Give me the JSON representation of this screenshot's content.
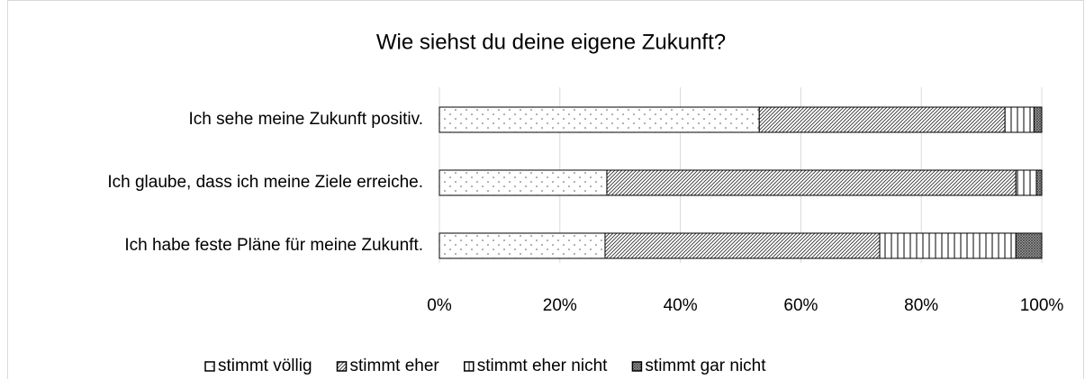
{
  "chart_data": {
    "type": "stacked_bar_horizontal",
    "title": "Wie siehst du deine eigene Zukunft?",
    "categories": [
      "Ich sehe meine Zukunft positiv.",
      "Ich glaube, dass ich meine Ziele erreiche.",
      "Ich habe feste Pläne für meine Zukunft."
    ],
    "series": [
      {
        "name": "stimmt völlig",
        "pattern": "dots",
        "values": [
          53.1,
          27.8,
          27.5
        ]
      },
      {
        "name": "stimmt eher",
        "pattern": "diagonal",
        "values": [
          40.8,
          67.9,
          45.6
        ]
      },
      {
        "name": "stimmt eher nicht",
        "pattern": "vertical",
        "values": [
          4.8,
          3.4,
          22.6
        ]
      },
      {
        "name": "stimmt gar nicht",
        "pattern": "crosshatch",
        "values": [
          1.3,
          0.9,
          4.3
        ]
      }
    ],
    "xlim": [
      0,
      100
    ],
    "xticks": [
      {
        "value": 0,
        "label": "0%"
      },
      {
        "value": 20,
        "label": "20%"
      },
      {
        "value": 40,
        "label": "40%"
      },
      {
        "value": 60,
        "label": "60%"
      },
      {
        "value": 80,
        "label": "80%"
      },
      {
        "value": 100,
        "label": "100%"
      }
    ],
    "grid": true,
    "legend": "bottom"
  }
}
